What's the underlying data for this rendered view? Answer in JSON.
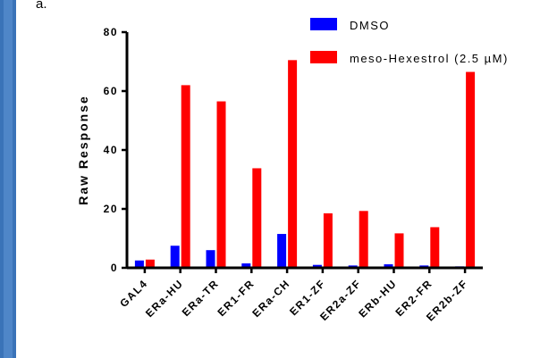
{
  "panel_label": "a.",
  "chart_data": {
    "type": "bar",
    "title": "",
    "xlabel": "",
    "ylabel": "Raw Response",
    "ylim": [
      0,
      80
    ],
    "yticks": [
      0,
      20,
      40,
      60,
      80
    ],
    "categories": [
      "GAL4",
      "ERa-HU",
      "ERa-TR",
      "ER1-FR",
      "ERa-CH",
      "ER1-ZF",
      "ER2a-ZF",
      "ERb-HU",
      "ER2-FR",
      "ER2b-ZF"
    ],
    "series": [
      {
        "name": "DMSO",
        "color": "#0000ff",
        "values": [
          2.5,
          7.5,
          6,
          1.5,
          11.5,
          1,
          0.8,
          1.2,
          0.8,
          0.5
        ]
      },
      {
        "name": "meso-Hexestrol (2.5 µM)",
        "color": "#ff0000",
        "values": [
          2.8,
          62,
          56.5,
          33.8,
          70.5,
          18.5,
          19.3,
          11.7,
          13.8,
          66.5
        ]
      }
    ],
    "grid": false,
    "legend_position": "top-right"
  }
}
